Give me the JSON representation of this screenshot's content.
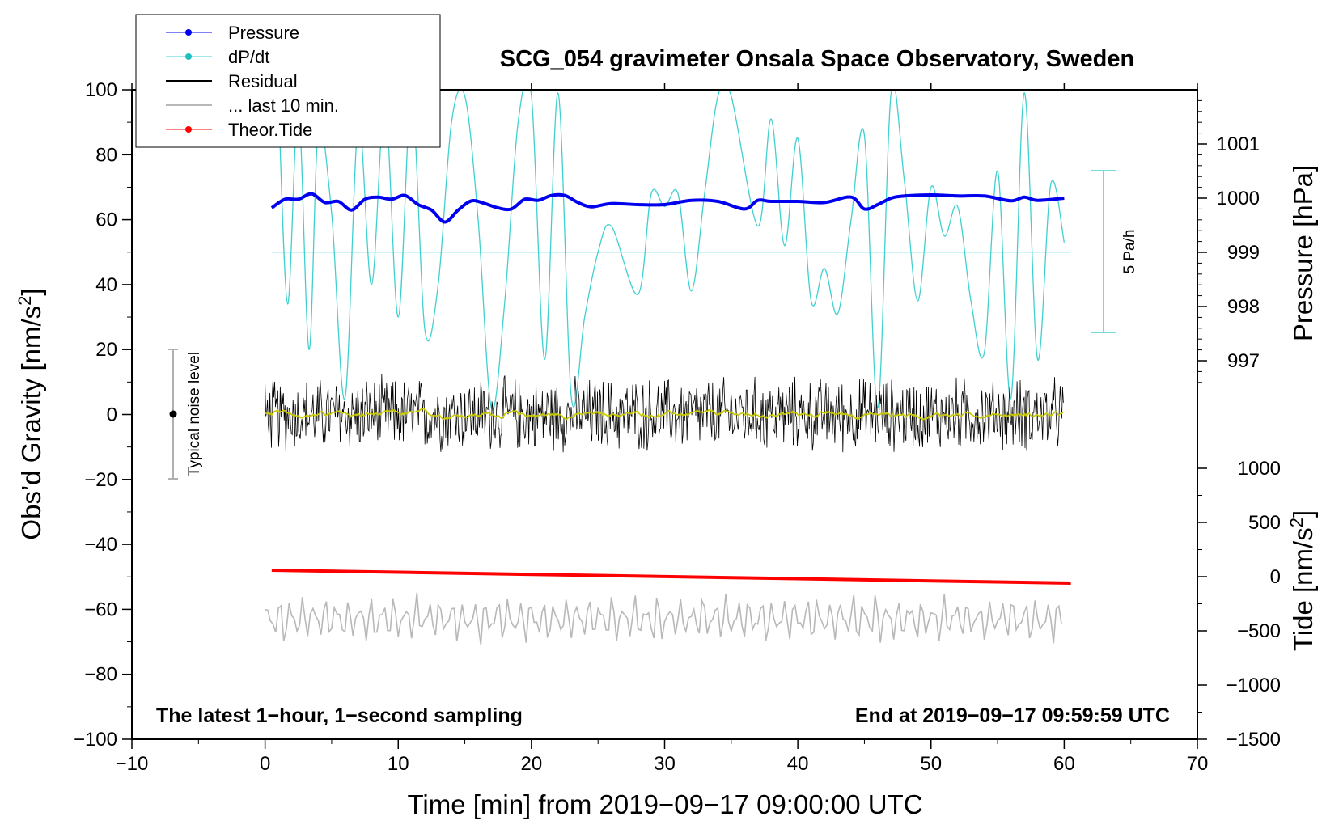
{
  "chart_data": {
    "type": "line",
    "title": "SCG_054 gravimeter Onsala Space Observatory, Sweden",
    "xlabel": "Time [min] from 2019−09−17 09:00:00 UTC",
    "ylabel": "Obs’d Gravity [nm/s²]",
    "ylabel_main": "Obs’d Gravity [nm/s",
    "ylabel_sup": "2",
    "ylabel_end": "]",
    "xlim": [
      -10,
      70
    ],
    "ylim": [
      -100,
      100
    ],
    "x_ticks": [
      "−10",
      "0",
      "10",
      "20",
      "30",
      "40",
      "50",
      "60",
      "70"
    ],
    "x_tick_values": [
      -10,
      0,
      10,
      20,
      30,
      40,
      50,
      60,
      70
    ],
    "y_ticks": [
      "−100",
      "−80",
      "−60",
      "−40",
      "−20",
      "0",
      "20",
      "40",
      "60",
      "80",
      "100"
    ],
    "y_tick_values": [
      -100,
      -80,
      -60,
      -40,
      -20,
      0,
      20,
      40,
      60,
      80,
      100
    ],
    "right_axis_pressure": {
      "label": "Pressure [hPa]",
      "range_hPa": [
        996.6,
        1001.8
      ],
      "ticks": [
        "1001",
        "1000",
        "999",
        "998",
        "997"
      ],
      "tick_values": [
        1001,
        1000,
        999,
        998,
        997
      ]
    },
    "right_axis_tide": {
      "label_main": "Tide [nm/s",
      "label_sup": "2",
      "label_end": "]",
      "range": [
        -1500,
        1500
      ],
      "ticks": [
        "1000",
        "500",
        "0",
        "−500",
        "−1000",
        "−1500"
      ],
      "tick_values": [
        1000,
        500,
        0,
        -500,
        -1000,
        -1500
      ]
    },
    "legend": {
      "position": "top-left",
      "entries": [
        "Pressure",
        "dP/dt",
        "Residual",
        "... last 10 min.",
        "Theor.Tide"
      ]
    },
    "series": [
      {
        "name": "Pressure",
        "color": "#0000ee",
        "axis": "pressure_hPa",
        "x": [
          0.5,
          1.5,
          2.5,
          3.5,
          4.5,
          5.5,
          6.5,
          7.5,
          8.5,
          9.5,
          10.5,
          11.5,
          12.5,
          13.5,
          14.5,
          15.5,
          16.5,
          17.5,
          18.5,
          19.5,
          20.5,
          21.5,
          22.5,
          23.5,
          24.5,
          26,
          28,
          30,
          32,
          34,
          36,
          37,
          38,
          40,
          42,
          44,
          45,
          46,
          47,
          48,
          50,
          52,
          54,
          56,
          57,
          58,
          60
        ],
        "y": [
          999.82,
          999.98,
          999.98,
          1000.08,
          999.92,
          999.94,
          999.78,
          999.98,
          1000.02,
          999.98,
          1000.05,
          999.88,
          999.78,
          999.56,
          999.78,
          999.95,
          999.9,
          999.82,
          999.8,
          999.98,
          999.96,
          1000.05,
          1000.05,
          999.92,
          999.84,
          999.9,
          999.88,
          999.88,
          999.96,
          999.94,
          999.8,
          999.96,
          999.94,
          999.94,
          999.92,
          1000.02,
          999.8,
          999.88,
          1000.0,
          1000.04,
          1000.06,
          1000.04,
          1000.04,
          999.95,
          1000.02,
          999.96,
          1000.0
        ]
      },
      {
        "name": "dP/dt",
        "color": "#40d0d0",
        "axis": "gravity_scale",
        "x": [
          1,
          1.7,
          2.5,
          3.3,
          4,
          5,
          6,
          7,
          8,
          9,
          10,
          11,
          12,
          13,
          14,
          15,
          16,
          17,
          18,
          19,
          20,
          21,
          22,
          23,
          24,
          25,
          26,
          28,
          29,
          30,
          31,
          32,
          33,
          34,
          35,
          37,
          38,
          39,
          40,
          41,
          42,
          43,
          44,
          45,
          46,
          47,
          48,
          49,
          50,
          51,
          52,
          53,
          54,
          55,
          56,
          57,
          58,
          59,
          60
        ],
        "y": [
          98,
          34,
          95,
          20,
          88,
          62,
          5,
          90,
          40,
          96,
          30,
          98,
          26,
          40,
          90,
          98,
          60,
          2,
          35,
          90,
          98,
          17,
          99,
          5,
          30,
          50,
          58,
          37,
          68,
          64,
          68,
          38,
          68,
          98,
          98,
          58,
          91,
          52,
          85,
          35,
          45,
          31,
          60,
          86,
          2,
          99,
          72,
          35,
          70,
          55,
          64,
          35,
          19,
          75,
          5,
          99,
          17,
          71,
          53
        ]
      },
      {
        "name": "Residual",
        "color": "#000000",
        "axis": "gravity",
        "amplitude_nm_s2": 13,
        "x_range": [
          0,
          60
        ]
      },
      {
        "name": "... last 10 min.",
        "color": "#b8b8b8",
        "axis": "gravity",
        "center_nm_s2": -63,
        "amplitude_nm_s2": 9,
        "x_range": [
          0,
          60
        ]
      },
      {
        "name": "Theor.Tide",
        "color": "#ff0000",
        "axis": "tide",
        "x": [
          0.5,
          60.5
        ],
        "y": [
          60,
          -60
        ]
      }
    ],
    "annotations": {
      "scale_bar_label": "5 Pa/h",
      "noise_label": "Typical noise level",
      "note_left": "The latest 1−hour, 1−second sampling",
      "note_right": "End at 2019−09−17 09:59:59 UTC"
    }
  }
}
